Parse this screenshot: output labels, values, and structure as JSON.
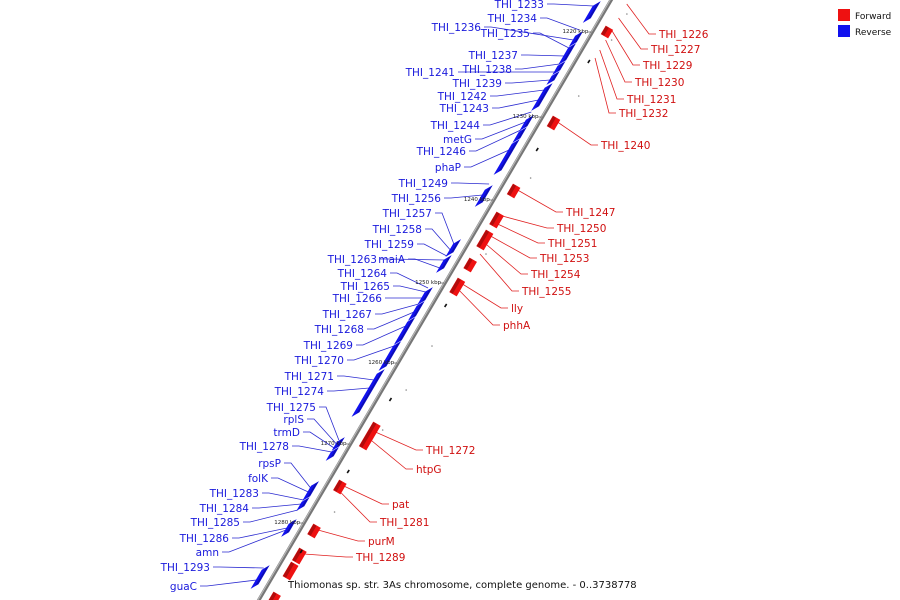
{
  "colors": {
    "forward": "#ee1111",
    "reverse": "#1111ee",
    "forward_line": "#e02020",
    "reverse_line": "#2a2ad0",
    "backbone": "#777777"
  },
  "legend": [
    {
      "label": "Forward",
      "color": "#ee1111"
    },
    {
      "label": "Reverse",
      "color": "#1111ee"
    }
  ],
  "caption": "Thiomonas sp. str. 3As chromosome, complete genome. - 0..3738778",
  "ticks": [
    "1220 kbp",
    "1230 kbp",
    "1240 kbp",
    "1250 kbp",
    "1260 kbp",
    "1270 kbp",
    "1280 kbp"
  ],
  "reverse_labels": [
    "THI_1233",
    "THI_1234",
    "THI_1236",
    "THI_1235",
    "THI_1237",
    "THI_1238",
    "THI_1241",
    "THI_1239",
    "THI_1242",
    "THI_1243",
    "THI_1244",
    "metG",
    "THI_1246",
    "phaP",
    "THI_1249",
    "THI_1256",
    "THI_1257",
    "THI_1258",
    "THI_1259",
    "THI_1263",
    "maiA",
    "THI_1264",
    "THI_1265",
    "THI_1266",
    "THI_1267",
    "THI_1268",
    "THI_1269",
    "THI_1270",
    "THI_1271",
    "THI_1274",
    "THI_1275",
    "rplS",
    "trmD",
    "THI_1278",
    "rpsP",
    "folK",
    "THI_1283",
    "THI_1284",
    "THI_1285",
    "THI_1286",
    "amn",
    "THI_1293",
    "guaC"
  ],
  "forward_labels": [
    "THI_1226",
    "THI_1227",
    "THI_1229",
    "THI_1230",
    "THI_1231",
    "THI_1232",
    "THI_1240",
    "THI_1247",
    "THI_1250",
    "THI_1251",
    "THI_1253",
    "THI_1254",
    "THI_1255",
    "lly",
    "phhA",
    "THI_1272",
    "htpG",
    "pat",
    "THI_1281",
    "purM",
    "THI_1289"
  ]
}
